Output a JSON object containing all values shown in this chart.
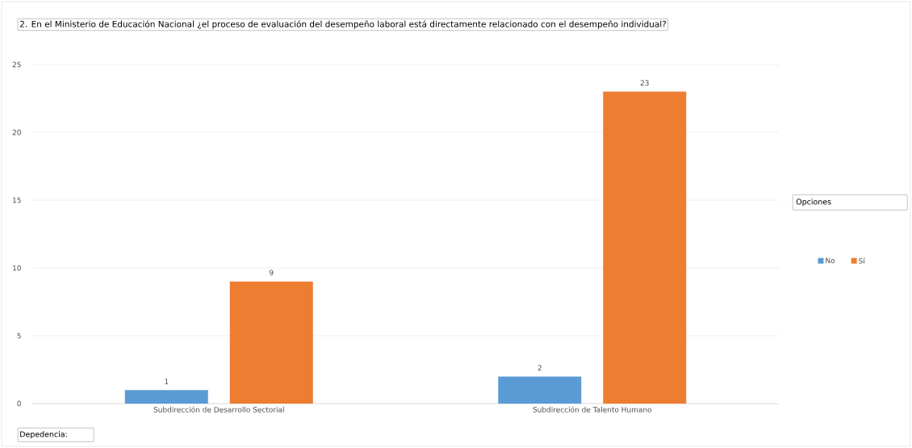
{
  "chart_data": {
    "type": "bar",
    "title": "2. En el Ministerio de Educación Nacional ¿el proceso de evaluación del desempeño laboral está directamente relacionado con el desempeño individual?",
    "xlabel": "Depedencia:",
    "legend_title": "Opciones",
    "categories": [
      "Subdirección de Desarrollo Sectorial",
      "Subdirección de Talento Humano"
    ],
    "series": [
      {
        "name": "No",
        "color": "#5b9bd5",
        "values": [
          1,
          2
        ]
      },
      {
        "name": "Sí",
        "color": "#ed7d31",
        "values": [
          9,
          23
        ]
      }
    ],
    "ylim": [
      0,
      25
    ],
    "yticks": [
      0,
      5,
      10,
      15,
      20,
      25
    ],
    "grid": "y",
    "legend": "right",
    "data_labels": true
  }
}
